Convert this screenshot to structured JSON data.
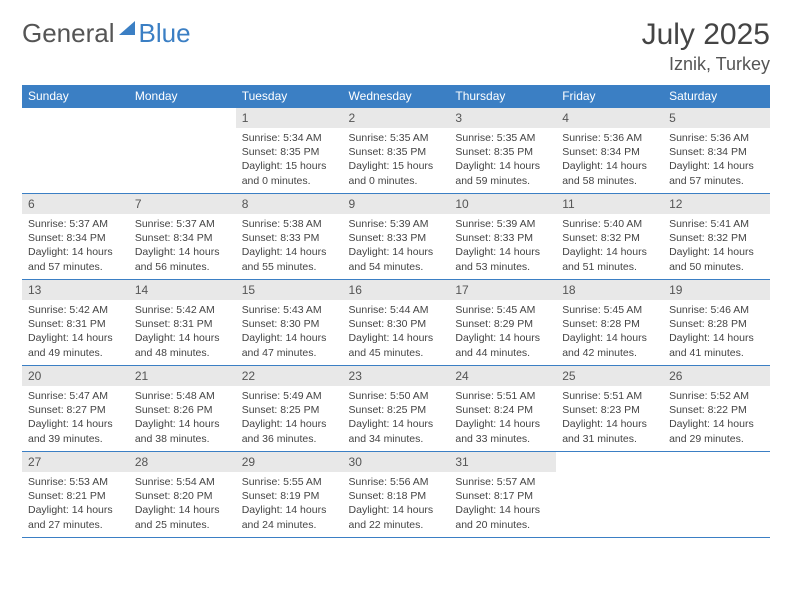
{
  "logo": {
    "text1": "General",
    "text2": "Blue"
  },
  "title": {
    "month": "July 2025",
    "location": "Iznik, Turkey"
  },
  "weekdays": [
    "Sunday",
    "Monday",
    "Tuesday",
    "Wednesday",
    "Thursday",
    "Friday",
    "Saturday"
  ],
  "colors": {
    "header_bg": "#3b7fc4",
    "header_text": "#ffffff",
    "daynum_bg": "#e8e8e8",
    "border": "#3b7fc4"
  },
  "weeks": [
    [
      {
        "num": "",
        "lines": []
      },
      {
        "num": "",
        "lines": []
      },
      {
        "num": "1",
        "lines": [
          "Sunrise: 5:34 AM",
          "Sunset: 8:35 PM",
          "Daylight: 15 hours",
          "and 0 minutes."
        ]
      },
      {
        "num": "2",
        "lines": [
          "Sunrise: 5:35 AM",
          "Sunset: 8:35 PM",
          "Daylight: 15 hours",
          "and 0 minutes."
        ]
      },
      {
        "num": "3",
        "lines": [
          "Sunrise: 5:35 AM",
          "Sunset: 8:35 PM",
          "Daylight: 14 hours",
          "and 59 minutes."
        ]
      },
      {
        "num": "4",
        "lines": [
          "Sunrise: 5:36 AM",
          "Sunset: 8:34 PM",
          "Daylight: 14 hours",
          "and 58 minutes."
        ]
      },
      {
        "num": "5",
        "lines": [
          "Sunrise: 5:36 AM",
          "Sunset: 8:34 PM",
          "Daylight: 14 hours",
          "and 57 minutes."
        ]
      }
    ],
    [
      {
        "num": "6",
        "lines": [
          "Sunrise: 5:37 AM",
          "Sunset: 8:34 PM",
          "Daylight: 14 hours",
          "and 57 minutes."
        ]
      },
      {
        "num": "7",
        "lines": [
          "Sunrise: 5:37 AM",
          "Sunset: 8:34 PM",
          "Daylight: 14 hours",
          "and 56 minutes."
        ]
      },
      {
        "num": "8",
        "lines": [
          "Sunrise: 5:38 AM",
          "Sunset: 8:33 PM",
          "Daylight: 14 hours",
          "and 55 minutes."
        ]
      },
      {
        "num": "9",
        "lines": [
          "Sunrise: 5:39 AM",
          "Sunset: 8:33 PM",
          "Daylight: 14 hours",
          "and 54 minutes."
        ]
      },
      {
        "num": "10",
        "lines": [
          "Sunrise: 5:39 AM",
          "Sunset: 8:33 PM",
          "Daylight: 14 hours",
          "and 53 minutes."
        ]
      },
      {
        "num": "11",
        "lines": [
          "Sunrise: 5:40 AM",
          "Sunset: 8:32 PM",
          "Daylight: 14 hours",
          "and 51 minutes."
        ]
      },
      {
        "num": "12",
        "lines": [
          "Sunrise: 5:41 AM",
          "Sunset: 8:32 PM",
          "Daylight: 14 hours",
          "and 50 minutes."
        ]
      }
    ],
    [
      {
        "num": "13",
        "lines": [
          "Sunrise: 5:42 AM",
          "Sunset: 8:31 PM",
          "Daylight: 14 hours",
          "and 49 minutes."
        ]
      },
      {
        "num": "14",
        "lines": [
          "Sunrise: 5:42 AM",
          "Sunset: 8:31 PM",
          "Daylight: 14 hours",
          "and 48 minutes."
        ]
      },
      {
        "num": "15",
        "lines": [
          "Sunrise: 5:43 AM",
          "Sunset: 8:30 PM",
          "Daylight: 14 hours",
          "and 47 minutes."
        ]
      },
      {
        "num": "16",
        "lines": [
          "Sunrise: 5:44 AM",
          "Sunset: 8:30 PM",
          "Daylight: 14 hours",
          "and 45 minutes."
        ]
      },
      {
        "num": "17",
        "lines": [
          "Sunrise: 5:45 AM",
          "Sunset: 8:29 PM",
          "Daylight: 14 hours",
          "and 44 minutes."
        ]
      },
      {
        "num": "18",
        "lines": [
          "Sunrise: 5:45 AM",
          "Sunset: 8:28 PM",
          "Daylight: 14 hours",
          "and 42 minutes."
        ]
      },
      {
        "num": "19",
        "lines": [
          "Sunrise: 5:46 AM",
          "Sunset: 8:28 PM",
          "Daylight: 14 hours",
          "and 41 minutes."
        ]
      }
    ],
    [
      {
        "num": "20",
        "lines": [
          "Sunrise: 5:47 AM",
          "Sunset: 8:27 PM",
          "Daylight: 14 hours",
          "and 39 minutes."
        ]
      },
      {
        "num": "21",
        "lines": [
          "Sunrise: 5:48 AM",
          "Sunset: 8:26 PM",
          "Daylight: 14 hours",
          "and 38 minutes."
        ]
      },
      {
        "num": "22",
        "lines": [
          "Sunrise: 5:49 AM",
          "Sunset: 8:25 PM",
          "Daylight: 14 hours",
          "and 36 minutes."
        ]
      },
      {
        "num": "23",
        "lines": [
          "Sunrise: 5:50 AM",
          "Sunset: 8:25 PM",
          "Daylight: 14 hours",
          "and 34 minutes."
        ]
      },
      {
        "num": "24",
        "lines": [
          "Sunrise: 5:51 AM",
          "Sunset: 8:24 PM",
          "Daylight: 14 hours",
          "and 33 minutes."
        ]
      },
      {
        "num": "25",
        "lines": [
          "Sunrise: 5:51 AM",
          "Sunset: 8:23 PM",
          "Daylight: 14 hours",
          "and 31 minutes."
        ]
      },
      {
        "num": "26",
        "lines": [
          "Sunrise: 5:52 AM",
          "Sunset: 8:22 PM",
          "Daylight: 14 hours",
          "and 29 minutes."
        ]
      }
    ],
    [
      {
        "num": "27",
        "lines": [
          "Sunrise: 5:53 AM",
          "Sunset: 8:21 PM",
          "Daylight: 14 hours",
          "and 27 minutes."
        ]
      },
      {
        "num": "28",
        "lines": [
          "Sunrise: 5:54 AM",
          "Sunset: 8:20 PM",
          "Daylight: 14 hours",
          "and 25 minutes."
        ]
      },
      {
        "num": "29",
        "lines": [
          "Sunrise: 5:55 AM",
          "Sunset: 8:19 PM",
          "Daylight: 14 hours",
          "and 24 minutes."
        ]
      },
      {
        "num": "30",
        "lines": [
          "Sunrise: 5:56 AM",
          "Sunset: 8:18 PM",
          "Daylight: 14 hours",
          "and 22 minutes."
        ]
      },
      {
        "num": "31",
        "lines": [
          "Sunrise: 5:57 AM",
          "Sunset: 8:17 PM",
          "Daylight: 14 hours",
          "and 20 minutes."
        ]
      },
      {
        "num": "",
        "lines": []
      },
      {
        "num": "",
        "lines": []
      }
    ]
  ]
}
